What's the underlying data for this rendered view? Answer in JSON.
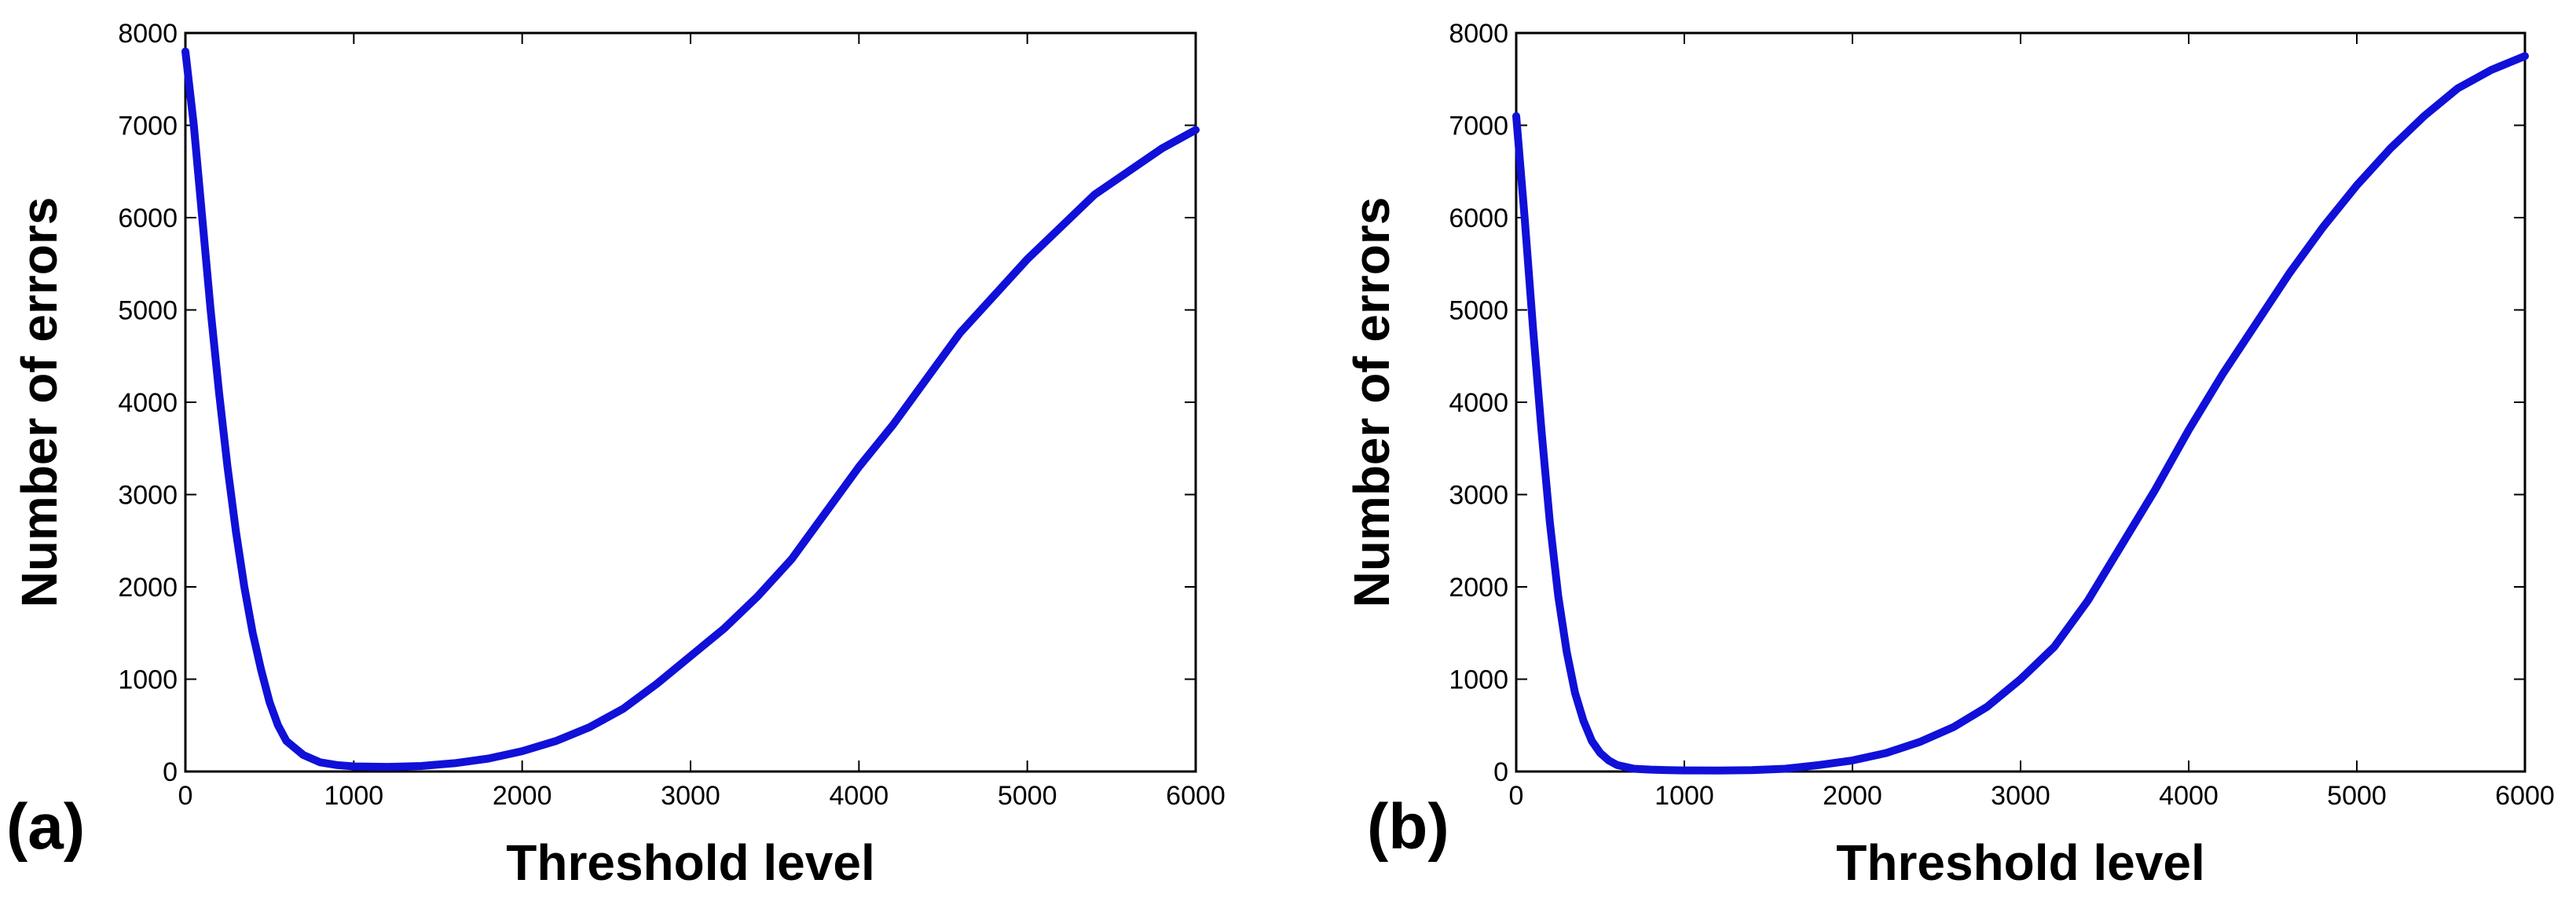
{
  "chart_data": [
    {
      "type": "line",
      "panel_label": "(a)",
      "xlabel": "Threshold level",
      "ylabel": "Number of errors",
      "xlim": [
        0,
        6000
      ],
      "ylim": [
        0,
        8000
      ],
      "xticks": [
        "0",
        "1000",
        "2000",
        "3000",
        "4000",
        "5000",
        "6000"
      ],
      "yticks": [
        "0",
        "1000",
        "2000",
        "3000",
        "4000",
        "5000",
        "6000",
        "7000",
        "8000"
      ],
      "color": "#1010d8",
      "series": [
        {
          "name": "errors",
          "x": [
            0,
            50,
            100,
            150,
            200,
            250,
            300,
            350,
            400,
            450,
            500,
            550,
            600,
            700,
            800,
            900,
            1000,
            1200,
            1400,
            1600,
            1800,
            2000,
            2200,
            2400,
            2600,
            2800,
            3000,
            3200,
            3400,
            3600,
            3800,
            4000,
            4200,
            4400,
            4600,
            4800,
            5000,
            5200,
            5400,
            5600,
            5800,
            6000
          ],
          "y": [
            7800,
            7000,
            6000,
            5000,
            4100,
            3300,
            2600,
            2000,
            1500,
            1100,
            750,
            500,
            330,
            180,
            100,
            70,
            55,
            50,
            60,
            90,
            140,
            220,
            330,
            480,
            680,
            950,
            1250,
            1550,
            1900,
            2300,
            2800,
            3300,
            3750,
            4250,
            4750,
            5150,
            5550,
            5900,
            6250,
            6500,
            6750,
            6950
          ]
        }
      ]
    },
    {
      "type": "line",
      "panel_label": "(b)",
      "xlabel": "Threshold level",
      "ylabel": "Number of errors",
      "xlim": [
        0,
        6000
      ],
      "ylim": [
        0,
        8000
      ],
      "xticks": [
        "0",
        "1000",
        "2000",
        "3000",
        "4000",
        "5000",
        "6000"
      ],
      "yticks": [
        "0",
        "1000",
        "2000",
        "3000",
        "4000",
        "5000",
        "6000",
        "7000",
        "8000"
      ],
      "color": "#1010d8",
      "series": [
        {
          "name": "errors",
          "x": [
            0,
            50,
            100,
            150,
            200,
            250,
            300,
            350,
            400,
            450,
            500,
            550,
            600,
            700,
            800,
            900,
            1000,
            1200,
            1400,
            1600,
            1800,
            2000,
            2200,
            2400,
            2600,
            2800,
            3000,
            3200,
            3400,
            3600,
            3800,
            4000,
            4200,
            4400,
            4600,
            4800,
            5000,
            5200,
            5400,
            5600,
            5800,
            6000
          ],
          "y": [
            7100,
            6000,
            4800,
            3700,
            2700,
            1900,
            1300,
            850,
            550,
            330,
            200,
            120,
            70,
            30,
            20,
            15,
            12,
            10,
            15,
            30,
            70,
            120,
            200,
            320,
            480,
            700,
            1000,
            1350,
            1850,
            2450,
            3050,
            3700,
            4300,
            4850,
            5400,
            5900,
            6350,
            6750,
            7100,
            7400,
            7600,
            7750
          ]
        }
      ]
    }
  ]
}
